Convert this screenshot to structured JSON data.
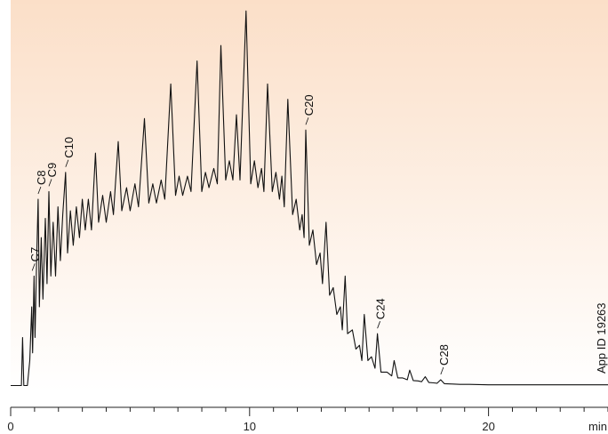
{
  "chart_data": {
    "type": "line",
    "title": "",
    "xlabel": "min",
    "ylabel": "",
    "xlim": [
      0,
      25
    ],
    "xticks": [
      0,
      10,
      20
    ],
    "grid": false,
    "annotation": "App ID 19263",
    "colors": {
      "trace": "#111111",
      "background_top": "#fbdfc8",
      "background_bottom": "#ffffff",
      "axis": "#222222"
    },
    "peak_labels": [
      {
        "label": "C7",
        "x": 0.9
      },
      {
        "label": "C8",
        "x": 1.15
      },
      {
        "label": "C9",
        "x": 1.6
      },
      {
        "label": "C10",
        "x": 2.3
      },
      {
        "label": "C20",
        "x": 12.35
      },
      {
        "label": "C24",
        "x": 15.35
      },
      {
        "label": "C28",
        "x": 18.0
      }
    ],
    "series": [
      {
        "values": [
          [
            0.0,
            1.5
          ],
          [
            0.45,
            1.5
          ],
          [
            0.5,
            14
          ],
          [
            0.55,
            1.5
          ],
          [
            0.7,
            1.5
          ],
          [
            0.8,
            8
          ],
          [
            0.88,
            22
          ],
          [
            0.92,
            10
          ],
          [
            0.98,
            30
          ],
          [
            1.02,
            14
          ],
          [
            1.08,
            32
          ],
          [
            1.15,
            50
          ],
          [
            1.2,
            22
          ],
          [
            1.28,
            40
          ],
          [
            1.35,
            24
          ],
          [
            1.45,
            45
          ],
          [
            1.52,
            28
          ],
          [
            1.6,
            52
          ],
          [
            1.68,
            30
          ],
          [
            1.78,
            44
          ],
          [
            1.88,
            30
          ],
          [
            1.98,
            48
          ],
          [
            2.08,
            34
          ],
          [
            2.18,
            46
          ],
          [
            2.3,
            57
          ],
          [
            2.38,
            36
          ],
          [
            2.5,
            47
          ],
          [
            2.62,
            38
          ],
          [
            2.75,
            48
          ],
          [
            2.88,
            40
          ],
          [
            3.0,
            50
          ],
          [
            3.12,
            42
          ],
          [
            3.25,
            50
          ],
          [
            3.38,
            42
          ],
          [
            3.55,
            62
          ],
          [
            3.68,
            44
          ],
          [
            3.85,
            51
          ],
          [
            4.0,
            44
          ],
          [
            4.18,
            52
          ],
          [
            4.3,
            46
          ],
          [
            4.5,
            65
          ],
          [
            4.65,
            47
          ],
          [
            4.85,
            53
          ],
          [
            5.0,
            47
          ],
          [
            5.2,
            54
          ],
          [
            5.35,
            48
          ],
          [
            5.6,
            71
          ],
          [
            5.78,
            49
          ],
          [
            5.95,
            54
          ],
          [
            6.1,
            49
          ],
          [
            6.3,
            55
          ],
          [
            6.45,
            50
          ],
          [
            6.7,
            80
          ],
          [
            6.9,
            51
          ],
          [
            7.05,
            56
          ],
          [
            7.2,
            51
          ],
          [
            7.4,
            56
          ],
          [
            7.55,
            52
          ],
          [
            7.8,
            86
          ],
          [
            8.0,
            52
          ],
          [
            8.15,
            57
          ],
          [
            8.3,
            53
          ],
          [
            8.5,
            58
          ],
          [
            8.65,
            54
          ],
          [
            8.8,
            90
          ],
          [
            9.0,
            55
          ],
          [
            9.15,
            60
          ],
          [
            9.3,
            55
          ],
          [
            9.45,
            72
          ],
          [
            9.6,
            55
          ],
          [
            9.85,
            99
          ],
          [
            10.05,
            54
          ],
          [
            10.2,
            60
          ],
          [
            10.35,
            53
          ],
          [
            10.5,
            58
          ],
          [
            10.6,
            52
          ],
          [
            10.75,
            80
          ],
          [
            10.95,
            52
          ],
          [
            11.1,
            57
          ],
          [
            11.25,
            50
          ],
          [
            11.35,
            56
          ],
          [
            11.45,
            48
          ],
          [
            11.6,
            76
          ],
          [
            11.8,
            46
          ],
          [
            11.95,
            50
          ],
          [
            12.1,
            42
          ],
          [
            12.2,
            46
          ],
          [
            12.28,
            40
          ],
          [
            12.35,
            68
          ],
          [
            12.5,
            38
          ],
          [
            12.65,
            42
          ],
          [
            12.8,
            33
          ],
          [
            12.95,
            36
          ],
          [
            13.05,
            28
          ],
          [
            13.2,
            44
          ],
          [
            13.35,
            25
          ],
          [
            13.5,
            27
          ],
          [
            13.65,
            20
          ],
          [
            13.8,
            22
          ],
          [
            13.88,
            16
          ],
          [
            14.0,
            30
          ],
          [
            14.1,
            15
          ],
          [
            14.3,
            16
          ],
          [
            14.45,
            11
          ],
          [
            14.6,
            12
          ],
          [
            14.7,
            8
          ],
          [
            14.8,
            20
          ],
          [
            14.95,
            8
          ],
          [
            15.1,
            9
          ],
          [
            15.25,
            6
          ],
          [
            15.35,
            15
          ],
          [
            15.5,
            5
          ],
          [
            15.75,
            5
          ],
          [
            15.95,
            4
          ],
          [
            16.05,
            8
          ],
          [
            16.2,
            3.5
          ],
          [
            16.4,
            3.5
          ],
          [
            16.6,
            3
          ],
          [
            16.7,
            5.5
          ],
          [
            16.85,
            2.8
          ],
          [
            17.05,
            2.7
          ],
          [
            17.2,
            2.5
          ],
          [
            17.35,
            3.8
          ],
          [
            17.5,
            2.3
          ],
          [
            17.7,
            2.2
          ],
          [
            17.85,
            2.1
          ],
          [
            18.0,
            3
          ],
          [
            18.15,
            2.0
          ],
          [
            18.5,
            1.9
          ],
          [
            18.8,
            1.8
          ],
          [
            19.2,
            1.8
          ],
          [
            20.0,
            1.7
          ],
          [
            21.0,
            1.7
          ],
          [
            22.0,
            1.7
          ],
          [
            23.0,
            1.7
          ],
          [
            24.0,
            1.7
          ],
          [
            25.0,
            1.7
          ]
        ]
      }
    ]
  }
}
